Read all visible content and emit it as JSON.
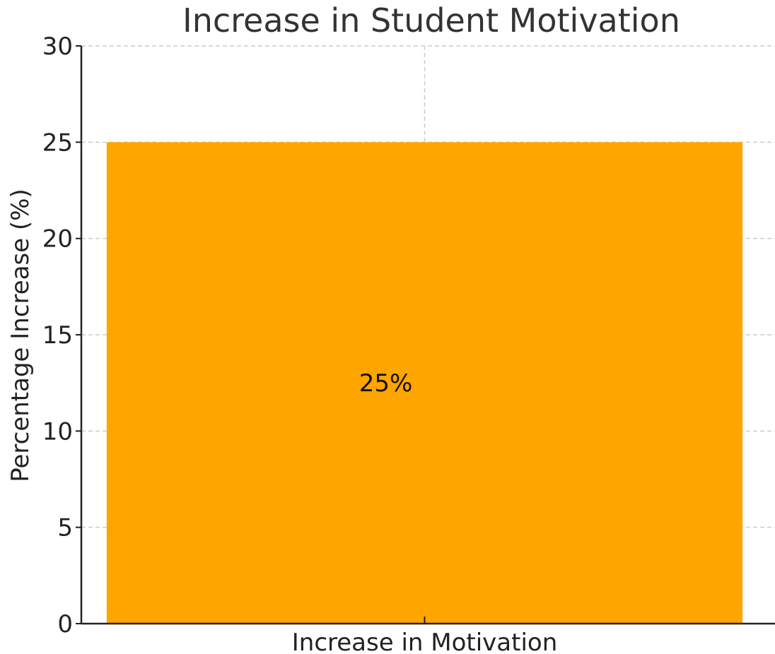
{
  "chart_data": {
    "type": "bar",
    "title": "Increase in Student Motivation",
    "xlabel": "",
    "ylabel": "Percentage Increase (%)",
    "categories": [
      "Increase in Motivation"
    ],
    "values": [
      25
    ],
    "data_labels": [
      "25%"
    ],
    "ylim": [
      0,
      30
    ],
    "yticks": [
      0,
      5,
      10,
      15,
      20,
      25,
      30
    ],
    "ytick_labels": [
      "0",
      "5",
      "10",
      "15",
      "20",
      "25",
      "30"
    ],
    "grid": true,
    "bar_color": "#FFA500"
  }
}
